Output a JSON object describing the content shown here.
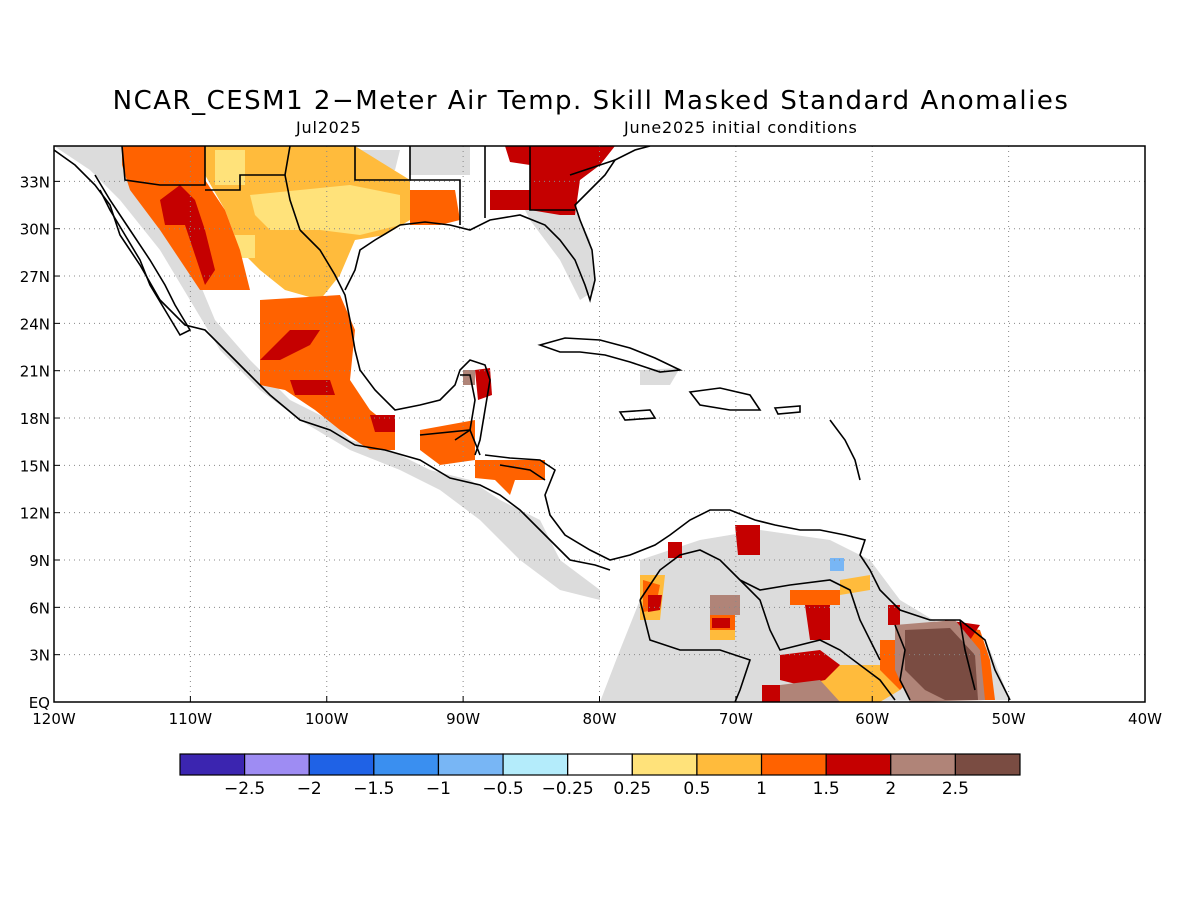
{
  "title": "NCAR_CESM1 2−Meter Air Temp. Skill Masked Standard Anomalies",
  "subtitle_left": "Jul2025",
  "subtitle_right": "June2025 initial conditions",
  "map": {
    "lon_ticks": [
      "120W",
      "110W",
      "100W",
      "90W",
      "80W",
      "70W",
      "60W",
      "50W",
      "40W"
    ],
    "lat_ticks": [
      "EQ",
      "3N",
      "6N",
      "9N",
      "12N",
      "15N",
      "18N",
      "21N",
      "24N",
      "27N",
      "30N",
      "33N"
    ],
    "gridlines": true
  },
  "colors": {
    "skill_gray": "#dcdcdc",
    "coast": "#000000"
  },
  "colorbar": {
    "colors": [
      "#3b25b0",
      "#9e8cf3",
      "#1f62e6",
      "#3a8ff0",
      "#78b6f5",
      "#b4ecfb",
      "#ffffff",
      "#ffe27a",
      "#ffbb3c",
      "#ff6200",
      "#c50000",
      "#b08478",
      "#7a4c42"
    ],
    "labels": [
      "−2.5",
      "−2",
      "−1.5",
      "−1",
      "−0.5",
      "−0.25",
      "0.25",
      "0.5",
      "1",
      "1.5",
      "2",
      "2.5"
    ]
  }
}
